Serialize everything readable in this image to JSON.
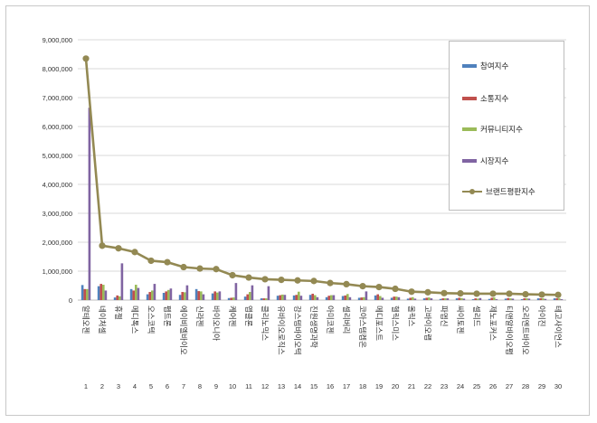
{
  "chart_data": {
    "type": "bar",
    "categories": [
      "알테오젠",
      "네이처셀",
      "휴젤",
      "메디톡스",
      "오스코텍",
      "펩트론",
      "에이비엘바이오",
      "신라젠",
      "바이오니아",
      "케어젠",
      "앱클론",
      "클리노믹스",
      "유바이오로직스",
      "강스템바이오텍",
      "진원생명과학",
      "아미코젠",
      "셀리버리",
      "코아스템켐온",
      "메디포스트",
      "헬릭스미스",
      "올릭스",
      "고바이오랩",
      "파멥신",
      "싸이토젠",
      "셀리드",
      "제노포커스",
      "티앤알바이오팹",
      "오리엔트바이오",
      "아이진",
      "테고사이언스"
    ],
    "ranks": [
      "1",
      "2",
      "3",
      "4",
      "5",
      "6",
      "7",
      "8",
      "9",
      "10",
      "11",
      "12",
      "13",
      "14",
      "15",
      "16",
      "17",
      "18",
      "19",
      "20",
      "21",
      "22",
      "23",
      "24",
      "25",
      "26",
      "27",
      "28",
      "29",
      "30"
    ],
    "y_ticks": [
      "0",
      "1,000,000",
      "2,000,000",
      "3,000,000",
      "4,000,000",
      "5,000,000",
      "6,000,000",
      "7,000,000",
      "8,000,000",
      "9,000,000"
    ],
    "ylim": [
      0,
      9000000
    ],
    "series": [
      {
        "name": "참여지수",
        "type": "bar",
        "color": "#4f81bd",
        "values": [
          520000,
          480000,
          90000,
          380000,
          200000,
          250000,
          180000,
          380000,
          230000,
          70000,
          120000,
          60000,
          150000,
          160000,
          180000,
          100000,
          140000,
          80000,
          160000,
          80000,
          50000,
          60000,
          40000,
          60000,
          30000,
          40000,
          50000,
          30000,
          60000,
          60000
        ]
      },
      {
        "name": "소통지수",
        "type": "bar",
        "color": "#c0504d",
        "values": [
          380000,
          560000,
          160000,
          330000,
          280000,
          300000,
          280000,
          310000,
          300000,
          80000,
          200000,
          60000,
          170000,
          180000,
          220000,
          150000,
          160000,
          90000,
          200000,
          120000,
          80000,
          80000,
          60000,
          80000,
          60000,
          80000,
          70000,
          60000,
          60000,
          60000
        ]
      },
      {
        "name": "커뮤니티지수",
        "type": "bar",
        "color": "#9bbb59",
        "values": [
          380000,
          530000,
          130000,
          530000,
          330000,
          350000,
          270000,
          300000,
          260000,
          90000,
          280000,
          60000,
          190000,
          290000,
          170000,
          170000,
          210000,
          100000,
          140000,
          120000,
          100000,
          90000,
          60000,
          70000,
          50000,
          90000,
          60000,
          60000,
          60000,
          60000
        ]
      },
      {
        "name": "시장지수",
        "type": "bar",
        "color": "#8064a2",
        "values": [
          6650000,
          330000,
          1270000,
          420000,
          560000,
          400000,
          510000,
          200000,
          300000,
          590000,
          510000,
          480000,
          180000,
          150000,
          100000,
          170000,
          100000,
          300000,
          80000,
          100000,
          50000,
          60000,
          60000,
          50000,
          70000,
          30000,
          50000,
          50000,
          40000,
          30000
        ]
      },
      {
        "name": "브랜드평판지수",
        "type": "line",
        "color": "#938953",
        "values": [
          8350000,
          1880000,
          1790000,
          1660000,
          1360000,
          1310000,
          1140000,
          1090000,
          1070000,
          860000,
          780000,
          720000,
          700000,
          680000,
          660000,
          590000,
          550000,
          480000,
          450000,
          390000,
          290000,
          270000,
          240000,
          230000,
          220000,
          220000,
          220000,
          200000,
          190000,
          180000
        ]
      }
    ]
  }
}
